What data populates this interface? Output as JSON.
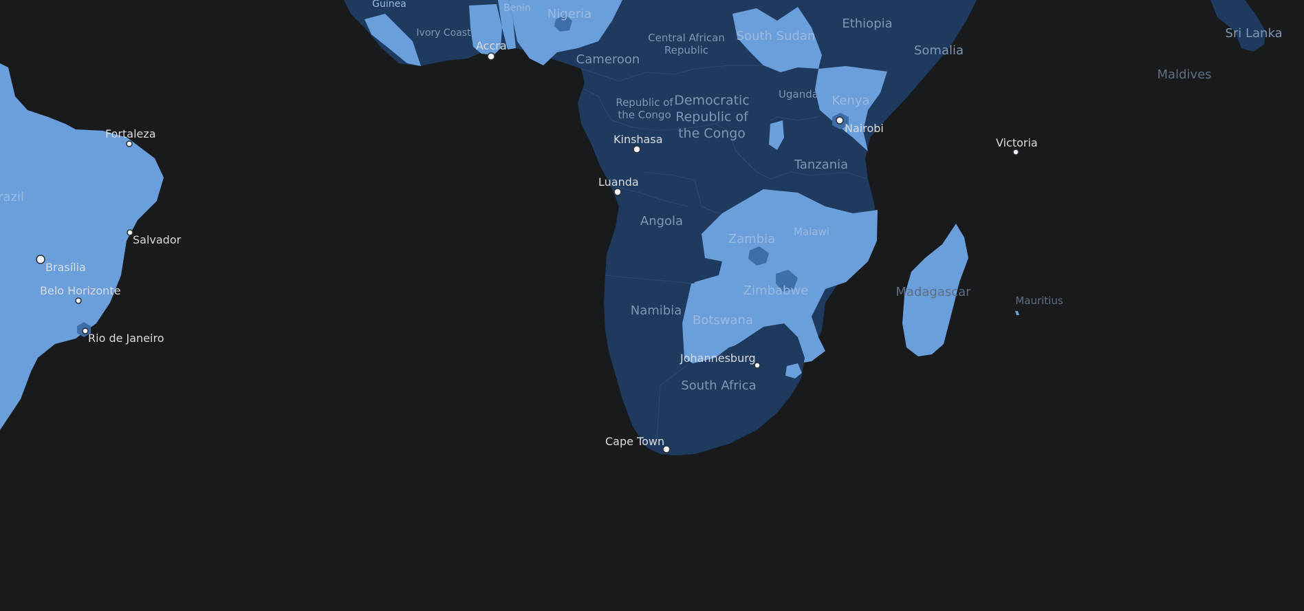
{
  "colors": {
    "ocean": "#181a1b",
    "land_dark": "#1f3a5f",
    "land_light": "#6a9fdb",
    "land_mid": "#3e6ea8",
    "label": "#7f96b4",
    "city": "#d9dde2"
  },
  "countries": {
    "guinea": "Guinea",
    "benin": "Benin",
    "nigeria": "Nigeria",
    "ivory_coast": "Ivory Coast",
    "central_african_republic_1": "Central African",
    "central_african_republic_2": "Republic",
    "south_sudan": "South Sudan",
    "ethiopia": "Ethiopia",
    "somalia": "Somalia",
    "sri_lanka": "Sri Lanka",
    "maldives": "Maldives",
    "cameroon": "Cameroon",
    "republic_of_congo_1": "Republic of",
    "republic_of_congo_2": "the Congo",
    "drc_1": "Democratic",
    "drc_2": "Republic of",
    "drc_3": "the Congo",
    "uganda": "Uganda",
    "kenya": "Kenya",
    "tanzania": "Tanzania",
    "brazil": "razil",
    "angola": "Angola",
    "zambia": "Zambia",
    "malawi": "Malawi",
    "zimbabwe": "Zimbabwe",
    "madagascar": "Madagascar",
    "mauritius": "Mauritius",
    "namibia": "Namibia",
    "botswana": "Botswana",
    "south_africa": "South Africa"
  },
  "cities": {
    "accra": "Accra",
    "fortaleza": "Fortaleza",
    "kinshasa": "Kinshasa",
    "nairobi": "Nairobi",
    "victoria": "Victoria",
    "luanda": "Luanda",
    "salvador": "Salvador",
    "brasilia": "Brasília",
    "belo_horizonte": "Belo Horizonte",
    "rio_de_janeiro": "Rio de Janeiro",
    "johannesburg": "Johannesburg",
    "cape_town": "Cape Town"
  }
}
